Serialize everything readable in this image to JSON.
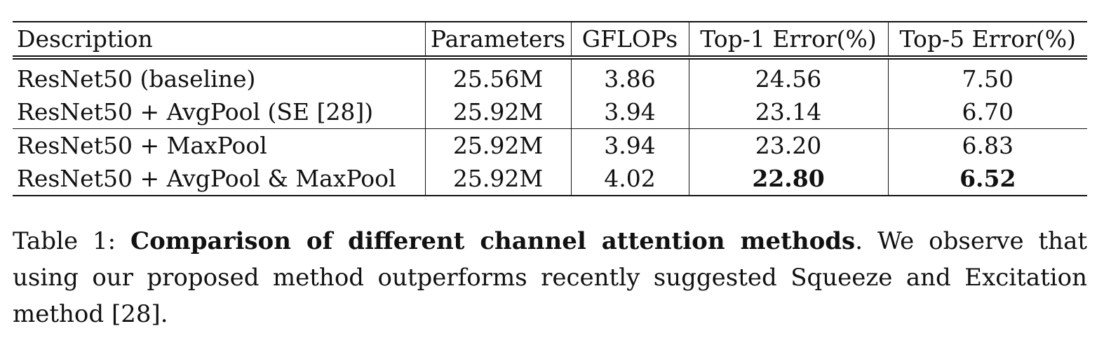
{
  "table": {
    "headers": [
      "Description",
      "Parameters",
      "GFLOPs",
      "Top-1 Error(%)",
      "Top-5 Error(%)"
    ],
    "group1": [
      [
        "ResNet50 (baseline)",
        "25.56M",
        "3.86",
        "24.56",
        "7.50"
      ],
      [
        "ResNet50 + AvgPool (SE [28])",
        "25.92M",
        "3.94",
        "23.14",
        "6.70"
      ]
    ],
    "group2": [
      [
        "ResNet50 + MaxPool",
        "25.92M",
        "3.94",
        "23.20",
        "6.83"
      ],
      [
        "ResNet50 + AvgPool & MaxPool",
        "25.92M",
        "4.02",
        "22.80",
        "6.52"
      ]
    ]
  },
  "caption": {
    "label": "Table 1: ",
    "title": "Comparison of different channel attention methods",
    "text": ". We observe that using our proposed method outperforms recently suggested Squeeze and Excitation method [28]."
  }
}
